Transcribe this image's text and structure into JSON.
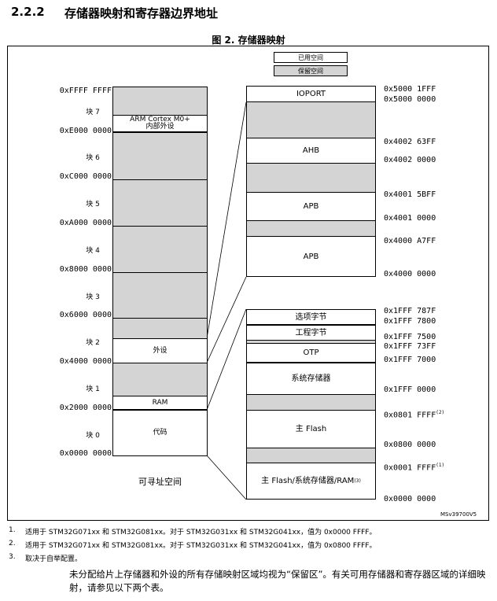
{
  "section": {
    "number": "2.2.2",
    "title": "存储器映射和寄存器边界地址"
  },
  "figure_title": "图 2. 存储器映射",
  "legend": {
    "used": "已用空间",
    "reserved": "保留空间"
  },
  "left_map": {
    "caption": "可寻址空间",
    "blocks": [
      "块 7",
      "块 6",
      "块 5",
      "块 4",
      "块 3",
      "块 2",
      "块 1",
      "块 0"
    ],
    "addresses": [
      "0xFFFF FFFF",
      "0xE000 0000",
      "0xC000 0000",
      "0xA000 0000",
      "0x8000 0000",
      "0x6000 0000",
      "0x4000 0000",
      "0x2000 0000",
      "0x0000 0000"
    ],
    "regions": {
      "cortex_line1": "ARM Cortex M0+",
      "cortex_line2": "内部外设",
      "peripherals": "外设",
      "ram": "RAM",
      "code": "代码"
    }
  },
  "upper_map": {
    "regions": {
      "ioport": "IOPORT",
      "ahb": "AHB",
      "apb1": "APB",
      "apb2": "APB"
    },
    "addresses": [
      "0x5000 1FFF",
      "0x5000 0000",
      "0x4002 63FF",
      "0x4002 0000",
      "0x4001 5BFF",
      "0x4001 0000",
      "0x4000 A7FF",
      "0x4000 0000"
    ]
  },
  "lower_map": {
    "regions": {
      "option_bytes": "选项字节",
      "engineering_bytes": "工程字节",
      "otp": "OTP",
      "system_memory": "系统存储器",
      "main_flash": "主 Flash",
      "aliased": "主 Flash/系统存储器/RAM",
      "aliased_note": "(3)"
    },
    "addresses": [
      "0x1FFF 787F",
      "0x1FFF 7800",
      "0x1FFF 7500",
      "0x1FFF 73FF",
      "0x1FFF 7000",
      "0x1FFF 0000",
      "0x0801 FFFF",
      "0x0800 0000",
      "0x0001 FFFF",
      "0x0000 0000"
    ],
    "address_notes": {
      "flash_end": "(2)",
      "alias_end": "(1)"
    }
  },
  "figure_id": "MSv39700V5",
  "footnotes": [
    {
      "num": "1.",
      "text": "适用于 STM32G071xx 和 STM32G081xx。对于 STM32G031xx 和 STM32G041xx，值为 0x0000 FFFF。"
    },
    {
      "num": "2.",
      "text": "适用于 STM32G071xx 和 STM32G081xx。对于 STM32G031xx 和 STM32G041xx，值为 0x0800 FFFF。"
    },
    {
      "num": "3.",
      "text": "取决于自举配置。"
    }
  ],
  "paragraph": "未分配给片上存储器和外设的所有存储映射区域均视为“保留区”。有关可用存储器和寄存器区域的详细映射，请参见以下两个表。",
  "colors": {
    "reserved": "#d4d4d4",
    "used": "#ffffff",
    "border": "#000000"
  }
}
